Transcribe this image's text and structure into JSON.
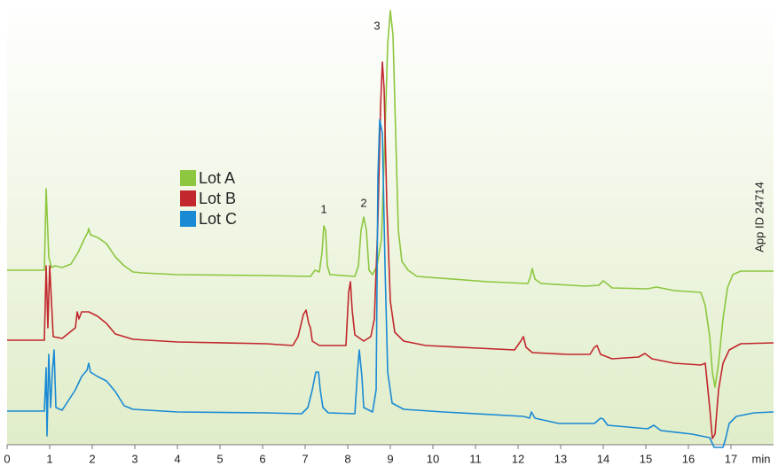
{
  "chart_data": {
    "type": "line",
    "x_label": "min",
    "note": "App ID 24714",
    "annotations": [
      "1",
      "2",
      "3"
    ],
    "xlim": [
      0,
      18
    ],
    "xticks": [
      0,
      1,
      2,
      3,
      4,
      5,
      6,
      7,
      8,
      9,
      10,
      11,
      12,
      13,
      14,
      15,
      16,
      17
    ],
    "ylim": [
      0,
      500
    ],
    "legend": "upper-left",
    "series": [
      {
        "name": "Lot A",
        "color": "#8dc63f",
        "x": [
          0,
          0.875,
          0.917,
          0.979,
          1.042,
          1.125,
          1.292,
          1.5,
          1.667,
          1.812,
          1.896,
          1.917,
          1.958,
          2.125,
          2.333,
          2.542,
          2.75,
          2.958,
          3.167,
          4,
          6.083,
          7.125,
          7.229,
          7.333,
          7.396,
          7.438,
          7.479,
          7.521,
          7.583,
          8.167,
          8.25,
          8.313,
          8.375,
          8.438,
          8.5,
          8.583,
          8.688,
          8.792,
          8.875,
          8.938,
          9,
          9.063,
          9.125,
          9.188,
          9.271,
          9.417,
          9.625,
          11.292,
          12.229,
          12.292,
          12.333,
          12.396,
          12.542,
          13.583,
          13.896,
          14,
          14.083,
          14.208,
          15.042,
          15.25,
          15.667,
          16.292,
          16.396,
          16.5,
          16.563,
          16.625,
          16.708,
          16.813,
          16.917,
          17.042,
          17.229,
          18
        ],
        "values": [
          197,
          197,
          289,
          212,
          200,
          202,
          200,
          204,
          217,
          232,
          240,
          244,
          237,
          234,
          227,
          212,
          202,
          195,
          194,
          192,
          191,
          190,
          197,
          195,
          217,
          247,
          242,
          202,
          192,
          190,
          202,
          242,
          257,
          242,
          197,
          192,
          202,
          232,
          352,
          452,
          490,
          462,
          352,
          242,
          207,
          197,
          190,
          184,
          182,
          190,
          199,
          187,
          182,
          179,
          180,
          185,
          182,
          177,
          176,
          178,
          174,
          172,
          157,
          122,
          82,
          65,
          92,
          142,
          177,
          192,
          196,
          196
        ]
      },
      {
        "name": "Lot B",
        "color": "#c1272d",
        "x": [
          0,
          0.875,
          0.917,
          0.958,
          1,
          1.042,
          1.083,
          1.292,
          1.604,
          1.646,
          1.688,
          1.75,
          1.917,
          2.125,
          2.333,
          2.542,
          2.958,
          4,
          6.083,
          6.708,
          6.833,
          6.958,
          7.021,
          7.083,
          7.125,
          7.167,
          7.333,
          7.958,
          8.021,
          8.063,
          8.104,
          8.167,
          8.375,
          8.542,
          8.625,
          8.708,
          8.771,
          8.813,
          8.854,
          8.917,
          9,
          9.104,
          9.313,
          9.833,
          11.917,
          12.063,
          12.125,
          12.188,
          12.333,
          13.167,
          13.688,
          13.792,
          13.854,
          13.938,
          14.208,
          14.833,
          14.979,
          15.146,
          15.667,
          16.292,
          16.396,
          16.5,
          16.563,
          16.625,
          16.708,
          16.813,
          16.958,
          17.229,
          18
        ],
        "values": [
          118,
          118,
          202,
          132,
          202,
          162,
          122,
          120,
          132,
          150,
          142,
          150,
          150,
          145,
          137,
          125,
          119,
          116,
          114,
          112,
          122,
          147,
          152,
          137,
          132,
          117,
          112,
          112,
          172,
          184,
          152,
          124,
          117,
          122,
          142,
          252,
          382,
          432,
          402,
          272,
          162,
          127,
          117,
          112,
          107,
          117,
          122,
          110,
          104,
          102,
          102,
          110,
          112,
          102,
          97,
          99,
          103,
          97,
          92,
          90,
          92,
          42,
          7,
          12,
          62,
          92,
          107,
          114,
          115
        ]
      },
      {
        "name": "Lot C",
        "color": "#1a8ad4",
        "x": [
          0,
          0.875,
          0.917,
          0.938,
          0.979,
          1.021,
          1.063,
          1.104,
          1.146,
          1.292,
          1.604,
          1.75,
          1.875,
          1.917,
          1.958,
          2.125,
          2.333,
          2.542,
          2.75,
          2.958,
          4,
          6.083,
          6.917,
          7.063,
          7.167,
          7.25,
          7.313,
          7.354,
          7.417,
          7.542,
          8.167,
          8.229,
          8.271,
          8.333,
          8.375,
          8.583,
          8.667,
          8.708,
          8.75,
          8.813,
          8.875,
          8.938,
          9.042,
          9.313,
          10.25,
          12.125,
          12.271,
          12.313,
          12.396,
          12.958,
          13.792,
          13.938,
          14,
          14.104,
          15.042,
          15.188,
          15.354,
          16.083,
          16.5,
          16.604,
          16.813,
          16.875,
          16.958,
          17.125,
          17.542,
          18
        ],
        "values": [
          38,
          38,
          87,
          10,
          102,
          42,
          82,
          107,
          42,
          39,
          62,
          77,
          84,
          92,
          82,
          77,
          72,
          60,
          44,
          40,
          37,
          36,
          35,
          42,
          62,
          82,
          82,
          62,
          42,
          36,
          35,
          82,
          107,
          77,
          42,
          37,
          62,
          302,
          367,
          352,
          202,
          82,
          47,
          40,
          37,
          32,
          30,
          37,
          30,
          24,
          24,
          30,
          29,
          22,
          18,
          22,
          16,
          12,
          8,
          -3,
          -3,
          7,
          24,
          32,
          36,
          37
        ]
      }
    ]
  }
}
